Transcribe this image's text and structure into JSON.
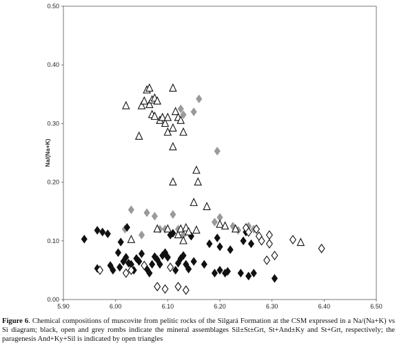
{
  "chart_data": {
    "type": "scatter",
    "title": "",
    "xlabel": "",
    "ylabel": "Na/(Na+K)",
    "xlim": [
      5.9,
      6.5
    ],
    "ylim": [
      0.0,
      0.5
    ],
    "x_ticks": [
      "5.90",
      "6.00",
      "6.10",
      "6.20",
      "6.30",
      "6.40",
      "6.50"
    ],
    "y_ticks": [
      "0.00",
      "0.10",
      "0.20",
      "0.30",
      "0.40",
      "0.50"
    ],
    "grid": false,
    "legend": "none",
    "series": [
      {
        "marker": "filled-diamond-black",
        "color": "#111111",
        "points": [
          [
            5.94,
            0.103
          ],
          [
            5.965,
            0.118
          ],
          [
            5.975,
            0.115
          ],
          [
            5.985,
            0.112
          ],
          [
            5.965,
            0.053
          ],
          [
            5.99,
            0.058
          ],
          [
            5.995,
            0.05
          ],
          [
            6.005,
            0.08
          ],
          [
            6.01,
            0.098
          ],
          [
            6.015,
            0.065
          ],
          [
            6.02,
            0.072
          ],
          [
            6.022,
            0.123
          ],
          [
            6.008,
            0.055
          ],
          [
            6.025,
            0.062
          ],
          [
            6.03,
            0.06
          ],
          [
            6.035,
            0.05
          ],
          [
            6.04,
            0.07
          ],
          [
            6.045,
            0.065
          ],
          [
            6.05,
            0.078
          ],
          [
            6.055,
            0.058
          ],
          [
            6.06,
            0.052
          ],
          [
            6.065,
            0.045
          ],
          [
            6.07,
            0.06
          ],
          [
            6.075,
            0.073
          ],
          [
            6.08,
            0.068
          ],
          [
            6.085,
            0.06
          ],
          [
            6.09,
            0.075
          ],
          [
            6.095,
            0.08
          ],
          [
            6.1,
            0.072
          ],
          [
            6.105,
            0.11
          ],
          [
            6.11,
            0.113
          ],
          [
            6.115,
            0.05
          ],
          [
            6.12,
            0.062
          ],
          [
            6.125,
            0.07
          ],
          [
            6.13,
            0.075
          ],
          [
            6.135,
            0.06
          ],
          [
            6.14,
            0.052
          ],
          [
            6.145,
            0.108
          ],
          [
            6.15,
            0.065
          ],
          [
            6.17,
            0.06
          ],
          [
            6.18,
            0.095
          ],
          [
            6.19,
            0.045
          ],
          [
            6.195,
            0.105
          ],
          [
            6.2,
            0.09
          ],
          [
            6.2,
            0.05
          ],
          [
            6.21,
            0.045
          ],
          [
            6.215,
            0.048
          ],
          [
            6.22,
            0.085
          ],
          [
            6.24,
            0.045
          ],
          [
            6.245,
            0.1
          ],
          [
            6.25,
            0.115
          ],
          [
            6.255,
            0.04
          ],
          [
            6.26,
            0.095
          ],
          [
            6.265,
            0.045
          ],
          [
            6.305,
            0.036
          ]
        ]
      },
      {
        "marker": "filled-diamond-grey",
        "color": "#9a9a9a",
        "points": [
          [
            6.03,
            0.153
          ],
          [
            6.06,
            0.148
          ],
          [
            6.075,
            0.142
          ],
          [
            6.085,
            0.12
          ],
          [
            6.095,
            0.12
          ],
          [
            6.11,
            0.145
          ],
          [
            6.13,
            0.315
          ],
          [
            6.125,
            0.325
          ],
          [
            6.15,
            0.32
          ],
          [
            6.16,
            0.342
          ],
          [
            6.195,
            0.253
          ],
          [
            6.19,
            0.132
          ],
          [
            6.2,
            0.14
          ],
          [
            6.12,
            0.12
          ],
          [
            6.13,
            0.11
          ],
          [
            6.225,
            0.125
          ],
          [
            6.235,
            0.118
          ],
          [
            6.255,
            0.125
          ],
          [
            6.265,
            0.12
          ],
          [
            6.018,
            0.12
          ],
          [
            6.05,
            0.11
          ]
        ]
      },
      {
        "marker": "open-diamond",
        "color": "#111111",
        "points": [
          [
            5.97,
            0.05
          ],
          [
            6.02,
            0.045
          ],
          [
            6.03,
            0.05
          ],
          [
            6.055,
            0.058
          ],
          [
            6.08,
            0.022
          ],
          [
            6.095,
            0.018
          ],
          [
            6.105,
            0.055
          ],
          [
            6.12,
            0.022
          ],
          [
            6.135,
            0.016
          ],
          [
            6.25,
            0.122
          ],
          [
            6.255,
            0.115
          ],
          [
            6.27,
            0.12
          ],
          [
            6.275,
            0.108
          ],
          [
            6.28,
            0.1
          ],
          [
            6.295,
            0.11
          ],
          [
            6.295,
            0.095
          ],
          [
            6.29,
            0.067
          ],
          [
            6.305,
            0.075
          ],
          [
            6.34,
            0.102
          ],
          [
            6.395,
            0.087
          ]
        ]
      },
      {
        "marker": "open-triangle",
        "color": "#111111",
        "points": [
          [
            6.02,
            0.33
          ],
          [
            6.045,
            0.278
          ],
          [
            6.05,
            0.33
          ],
          [
            6.055,
            0.338
          ],
          [
            6.06,
            0.357
          ],
          [
            6.065,
            0.36
          ],
          [
            6.065,
            0.332
          ],
          [
            6.07,
            0.34
          ],
          [
            6.075,
            0.343
          ],
          [
            6.08,
            0.338
          ],
          [
            6.07,
            0.315
          ],
          [
            6.075,
            0.312
          ],
          [
            6.085,
            0.305
          ],
          [
            6.09,
            0.31
          ],
          [
            6.095,
            0.3
          ],
          [
            6.1,
            0.31
          ],
          [
            6.1,
            0.285
          ],
          [
            6.11,
            0.36
          ],
          [
            6.11,
            0.292
          ],
          [
            6.11,
            0.26
          ],
          [
            6.11,
            0.2
          ],
          [
            6.115,
            0.32
          ],
          [
            6.12,
            0.31
          ],
          [
            6.125,
            0.305
          ],
          [
            6.13,
            0.285
          ],
          [
            6.155,
            0.22
          ],
          [
            6.158,
            0.2
          ],
          [
            6.15,
            0.165
          ],
          [
            6.175,
            0.158
          ],
          [
            6.03,
            0.102
          ],
          [
            6.08,
            0.12
          ],
          [
            6.1,
            0.12
          ],
          [
            6.12,
            0.11
          ],
          [
            6.125,
            0.12
          ],
          [
            6.13,
            0.1
          ],
          [
            6.135,
            0.122
          ],
          [
            6.14,
            0.115
          ],
          [
            6.155,
            0.118
          ],
          [
            6.2,
            0.128
          ],
          [
            6.21,
            0.125
          ],
          [
            6.23,
            0.12
          ],
          [
            6.355,
            0.097
          ]
        ]
      }
    ]
  },
  "caption": {
    "figure_label": "Figure 6",
    "text": ". Chemical compositions of muscovite from pelitic rocks of the Silgará Formation at the CSM expressed in a Na/(Na+K) vs Si diagram; black, open and grey rombs indicate the mineral assemblages Sil±St±Grt, St+And±Ky and St+Grt, respectively; the paragenesis And+Ky+Sil is indicated by open triangles"
  }
}
